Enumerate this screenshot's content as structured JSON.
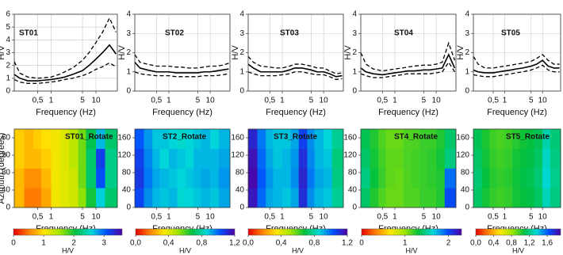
{
  "chart_data": [
    {
      "type": "line",
      "title": "ST01",
      "xlabel": "Frequency (Hz)",
      "ylabel": "H/V",
      "x": [
        0.15,
        0.2,
        0.3,
        0.5,
        0.7,
        1,
        1.5,
        2,
        3,
        5,
        7,
        10,
        14,
        20,
        28
      ],
      "xlim": [
        0.15,
        30
      ],
      "xscale": "log",
      "xticks": [
        {
          "value": 0.5,
          "label": "0,5"
        },
        1,
        5,
        10
      ],
      "ylim": [
        0,
        6
      ],
      "yticks": [
        0,
        1,
        2,
        3,
        4,
        5,
        6
      ],
      "grid": true,
      "series": [
        {
          "color": "#000000",
          "dash": false,
          "values": [
            1.3,
            1.0,
            0.8,
            0.8,
            0.85,
            0.9,
            1.0,
            1.1,
            1.3,
            1.6,
            2.0,
            2.5,
            3.0,
            3.6,
            2.9
          ]
        },
        {
          "color": "#000000",
          "dash": true,
          "values": [
            2.3,
            1.4,
            1.1,
            1.0,
            1.05,
            1.1,
            1.3,
            1.5,
            1.8,
            2.4,
            3.0,
            3.8,
            4.6,
            5.7,
            4.6
          ]
        },
        {
          "color": "#000000",
          "dash": true,
          "values": [
            0.9,
            0.7,
            0.6,
            0.6,
            0.65,
            0.7,
            0.8,
            0.9,
            1.0,
            1.2,
            1.4,
            1.7,
            1.9,
            2.2,
            1.9
          ]
        }
      ]
    },
    {
      "type": "line",
      "title": "ST02",
      "xlabel": "Frequency (Hz)",
      "ylabel": "H/V",
      "x": [
        0.15,
        0.2,
        0.3,
        0.5,
        0.7,
        1,
        1.5,
        2,
        3,
        5,
        7,
        10,
        14,
        20,
        28
      ],
      "xlim": [
        0.15,
        30
      ],
      "xscale": "log",
      "xticks": [
        {
          "value": 0.5,
          "label": "0,5"
        },
        1,
        5,
        10
      ],
      "ylim": [
        0,
        4
      ],
      "yticks": [
        0,
        1,
        2,
        3,
        4
      ],
      "grid": true,
      "series": [
        {
          "color": "#000000",
          "dash": false,
          "values": [
            1.5,
            1.2,
            1.1,
            1.0,
            1.0,
            1.0,
            0.95,
            0.95,
            0.95,
            0.95,
            1.0,
            1.0,
            1.05,
            1.1,
            1.15
          ]
        },
        {
          "color": "#000000",
          "dash": true,
          "values": [
            1.9,
            1.5,
            1.4,
            1.3,
            1.3,
            1.3,
            1.25,
            1.25,
            1.2,
            1.2,
            1.25,
            1.3,
            1.3,
            1.35,
            1.45
          ]
        },
        {
          "color": "#000000",
          "dash": true,
          "values": [
            1.0,
            0.9,
            0.85,
            0.8,
            0.8,
            0.8,
            0.75,
            0.75,
            0.75,
            0.75,
            0.8,
            0.8,
            0.8,
            0.85,
            0.9
          ]
        }
      ]
    },
    {
      "type": "line",
      "title": "ST03",
      "xlabel": "Frequency (Hz)",
      "ylabel": "H/V",
      "x": [
        0.15,
        0.2,
        0.3,
        0.5,
        0.7,
        1,
        1.5,
        2,
        3,
        5,
        7,
        10,
        14,
        20,
        28
      ],
      "xlim": [
        0.15,
        30
      ],
      "xscale": "log",
      "xticks": [
        {
          "value": 0.5,
          "label": "0,5"
        },
        1,
        5,
        10
      ],
      "ylim": [
        0,
        4
      ],
      "yticks": [
        0,
        1,
        2,
        3,
        4
      ],
      "grid": true,
      "series": [
        {
          "color": "#000000",
          "dash": false,
          "values": [
            1.4,
            1.2,
            1.0,
            1.0,
            1.0,
            1.0,
            1.1,
            1.2,
            1.2,
            1.1,
            1.0,
            1.0,
            0.9,
            0.75,
            0.8
          ]
        },
        {
          "color": "#000000",
          "dash": true,
          "values": [
            1.8,
            1.5,
            1.3,
            1.25,
            1.2,
            1.2,
            1.3,
            1.4,
            1.4,
            1.3,
            1.2,
            1.2,
            1.05,
            0.9,
            0.95
          ]
        },
        {
          "color": "#000000",
          "dash": true,
          "values": [
            1.0,
            0.9,
            0.8,
            0.8,
            0.8,
            0.85,
            0.9,
            1.0,
            1.0,
            0.9,
            0.85,
            0.85,
            0.75,
            0.6,
            0.65
          ]
        }
      ]
    },
    {
      "type": "line",
      "title": "ST04",
      "xlabel": "Frequency (Hz)",
      "ylabel": "H/V",
      "x": [
        0.15,
        0.2,
        0.3,
        0.5,
        0.7,
        1,
        1.5,
        2,
        3,
        5,
        7,
        10,
        14,
        20,
        28
      ],
      "xlim": [
        0.15,
        30
      ],
      "xscale": "log",
      "xticks": [
        {
          "value": 0.5,
          "label": "0,5"
        },
        1,
        5,
        10
      ],
      "ylim": [
        0,
        4
      ],
      "yticks": [
        0,
        1,
        2,
        3,
        4
      ],
      "grid": true,
      "series": [
        {
          "color": "#000000",
          "dash": false,
          "values": [
            1.2,
            1.0,
            0.9,
            0.85,
            0.9,
            0.95,
            1.0,
            1.05,
            1.05,
            1.1,
            1.1,
            1.15,
            1.2,
            1.9,
            1.2
          ]
        },
        {
          "color": "#000000",
          "dash": true,
          "values": [
            2.0,
            1.4,
            1.15,
            1.05,
            1.1,
            1.15,
            1.2,
            1.25,
            1.3,
            1.35,
            1.35,
            1.4,
            1.5,
            2.5,
            1.6
          ]
        },
        {
          "color": "#000000",
          "dash": true,
          "values": [
            0.9,
            0.8,
            0.7,
            0.7,
            0.75,
            0.8,
            0.85,
            0.9,
            0.9,
            0.9,
            0.9,
            0.95,
            1.0,
            1.5,
            1.0
          ]
        }
      ]
    },
    {
      "type": "line",
      "title": "ST05",
      "xlabel": "Frequency (Hz)",
      "ylabel": "H/V",
      "x": [
        0.15,
        0.2,
        0.3,
        0.5,
        0.7,
        1,
        1.5,
        2,
        3,
        5,
        7,
        10,
        14,
        20,
        28
      ],
      "xlim": [
        0.15,
        30
      ],
      "xscale": "log",
      "xticks": [
        {
          "value": 0.5,
          "label": "0,5"
        },
        1,
        5,
        10
      ],
      "ylim": [
        0,
        4
      ],
      "yticks": [
        0,
        1,
        2,
        3,
        4
      ],
      "grid": true,
      "series": [
        {
          "color": "#000000",
          "dash": false,
          "values": [
            1.1,
            1.0,
            0.95,
            0.95,
            1.0,
            1.05,
            1.1,
            1.15,
            1.2,
            1.3,
            1.4,
            1.6,
            1.3,
            1.2,
            1.2
          ]
        },
        {
          "color": "#000000",
          "dash": true,
          "values": [
            1.8,
            1.4,
            1.2,
            1.2,
            1.25,
            1.3,
            1.35,
            1.4,
            1.45,
            1.55,
            1.7,
            1.9,
            1.6,
            1.4,
            1.4
          ]
        },
        {
          "color": "#000000",
          "dash": true,
          "values": [
            0.85,
            0.8,
            0.75,
            0.75,
            0.8,
            0.85,
            0.9,
            0.95,
            1.0,
            1.1,
            1.2,
            1.35,
            1.1,
            1.0,
            1.0
          ]
        }
      ]
    },
    {
      "type": "heatmap",
      "title": "ST01_Rotate",
      "xlabel": "Frequency (Hz)",
      "ylabel": "Azimuth (degrees)",
      "xbins": [
        0.15,
        0.25,
        0.4,
        0.6,
        1,
        1.6,
        2.5,
        4,
        6,
        10,
        16,
        30
      ],
      "ybins": [
        0,
        45,
        90,
        135,
        180
      ],
      "z": [
        [
          0.8,
          0.5,
          0.5,
          0.7,
          1.1,
          1.2,
          1.3,
          1.6,
          2.0,
          2.6,
          2.2
        ],
        [
          0.8,
          0.6,
          0.6,
          0.8,
          1.1,
          1.2,
          1.3,
          1.7,
          2.2,
          3.1,
          2.3
        ],
        [
          0.9,
          0.8,
          0.8,
          0.9,
          1.1,
          1.2,
          1.4,
          1.7,
          2.2,
          3.2,
          2.3
        ],
        [
          0.9,
          0.8,
          0.9,
          1.0,
          1.1,
          1.2,
          1.4,
          1.7,
          2.1,
          2.7,
          2.2
        ]
      ],
      "xlim": [
        0.15,
        30
      ],
      "xscale": "log",
      "xticks": [
        {
          "value": 0.5,
          "label": "0,5"
        },
        1,
        5,
        10
      ],
      "ylim": [
        0,
        180
      ],
      "yticks": [
        0,
        40,
        80,
        120,
        160
      ],
      "colorscale": [
        "#e60000",
        "#ff8000",
        "#ffe600",
        "#a0e600",
        "#00c040",
        "#00d8d8",
        "#0050ff",
        "#5000a0"
      ],
      "colorbar": {
        "range": [
          0,
          3.6
        ],
        "ticks": [
          0,
          1,
          2,
          3
        ],
        "label": "H/V"
      }
    },
    {
      "type": "heatmap",
      "title": "ST2_Rotate",
      "xlabel": "Frequency (Hz)",
      "xbins": [
        0.15,
        0.25,
        0.4,
        0.6,
        1,
        1.6,
        2.5,
        4,
        6,
        10,
        16,
        30
      ],
      "ybins": [
        0,
        45,
        90,
        135,
        180
      ],
      "z": [
        [
          1.05,
          0.95,
          0.9,
          0.88,
          0.9,
          0.85,
          0.86,
          0.88,
          0.9,
          0.88,
          0.92
        ],
        [
          1.08,
          0.98,
          0.92,
          0.9,
          0.88,
          0.86,
          0.88,
          0.9,
          0.92,
          0.9,
          0.94
        ],
        [
          1.06,
          0.96,
          0.9,
          0.86,
          0.9,
          0.88,
          0.86,
          0.9,
          0.9,
          0.9,
          0.92
        ],
        [
          1.02,
          0.94,
          0.88,
          0.88,
          0.86,
          0.84,
          0.86,
          0.88,
          0.9,
          0.86,
          0.9
        ]
      ],
      "xlim": [
        0.15,
        30
      ],
      "xscale": "log",
      "xticks": [
        {
          "value": 0.5,
          "label": "0,5"
        },
        1,
        5,
        10
      ],
      "ylim": [
        0,
        180
      ],
      "yticks": [
        0,
        40,
        80,
        120,
        160
      ],
      "colorscale": [
        "#e60000",
        "#ff8000",
        "#ffe600",
        "#a0e600",
        "#00c040",
        "#00d8d8",
        "#0050ff",
        "#5000a0"
      ],
      "colorbar": {
        "range": [
          0,
          1.2
        ],
        "ticks": [
          {
            "value": 0,
            "label": "0,0"
          },
          {
            "value": 0.4,
            "label": "0,4"
          },
          {
            "value": 0.8,
            "label": "0,8"
          },
          {
            "value": 1.2,
            "label": "1,2"
          }
        ],
        "label": "H/V"
      }
    },
    {
      "type": "heatmap",
      "title": "ST3_Rotate",
      "xlabel": "Frequency (Hz)",
      "xbins": [
        0.15,
        0.25,
        0.4,
        0.6,
        1,
        1.6,
        2.5,
        4,
        6,
        10,
        16,
        30
      ],
      "ybins": [
        0,
        45,
        90,
        135,
        180
      ],
      "z": [
        [
          1.15,
          1.0,
          0.92,
          0.9,
          0.88,
          0.92,
          1.1,
          0.95,
          0.9,
          0.88,
          0.78
        ],
        [
          1.18,
          1.02,
          0.94,
          0.9,
          0.9,
          0.95,
          1.12,
          0.98,
          0.92,
          0.9,
          0.76
        ],
        [
          1.16,
          1.0,
          0.92,
          0.88,
          0.9,
          0.94,
          1.1,
          0.96,
          0.9,
          0.88,
          0.75
        ],
        [
          1.12,
          0.98,
          0.9,
          0.88,
          0.88,
          0.92,
          1.06,
          0.95,
          0.9,
          0.86,
          0.78
        ]
      ],
      "xlim": [
        0.15,
        30
      ],
      "xscale": "log",
      "xticks": [
        {
          "value": 0.5,
          "label": "0,5"
        },
        1,
        5,
        10
      ],
      "ylim": [
        0,
        180
      ],
      "yticks": [
        0,
        40,
        80,
        120,
        160
      ],
      "colorscale": [
        "#e60000",
        "#ff8000",
        "#ffe600",
        "#a0e600",
        "#00c040",
        "#00d8d8",
        "#0050ff",
        "#5000a0"
      ],
      "colorbar": {
        "range": [
          0,
          1.2
        ],
        "ticks": [
          {
            "value": 0,
            "label": "0,0"
          },
          {
            "value": 0.4,
            "label": "0,4"
          },
          {
            "value": 0.8,
            "label": "0,8"
          },
          {
            "value": 1.2,
            "label": "1,2"
          }
        ],
        "label": "H/V"
      }
    },
    {
      "type": "heatmap",
      "title": "ST4_Rotate",
      "xlabel": "Frequency (Hz)",
      "xbins": [
        0.15,
        0.25,
        0.4,
        0.6,
        1,
        1.6,
        2.5,
        4,
        6,
        10,
        16,
        30
      ],
      "ybins": [
        0,
        45,
        90,
        135,
        180
      ],
      "z": [
        [
          1.4,
          1.25,
          1.15,
          1.1,
          1.1,
          1.15,
          1.15,
          1.2,
          1.2,
          1.25,
          2.0
        ],
        [
          1.45,
          1.3,
          1.2,
          1.12,
          1.1,
          1.15,
          1.18,
          1.2,
          1.22,
          1.25,
          1.9
        ],
        [
          1.4,
          1.28,
          1.18,
          1.12,
          1.12,
          1.16,
          1.18,
          1.2,
          1.22,
          1.28,
          1.45
        ],
        [
          1.35,
          1.25,
          1.15,
          1.1,
          1.1,
          1.15,
          1.16,
          1.2,
          1.2,
          1.25,
          1.4
        ]
      ],
      "xlim": [
        0.15,
        30
      ],
      "xscale": "log",
      "xticks": [
        {
          "value": 0.5,
          "label": "0,5"
        },
        1,
        5,
        10
      ],
      "ylim": [
        0,
        180
      ],
      "yticks": [
        0,
        40,
        80,
        120,
        160
      ],
      "colorscale": [
        "#e60000",
        "#ff8000",
        "#ffe600",
        "#a0e600",
        "#00c040",
        "#00d8d8",
        "#0050ff",
        "#5000a0"
      ],
      "colorbar": {
        "range": [
          0,
          2.3
        ],
        "ticks": [
          0,
          1,
          2
        ],
        "label": "H/V"
      }
    },
    {
      "type": "heatmap",
      "title": "ST5_Rotate",
      "xlabel": "Frequency (Hz)",
      "xbins": [
        0.15,
        0.25,
        0.4,
        0.6,
        1,
        1.6,
        2.5,
        4,
        6,
        10,
        16,
        30
      ],
      "ybins": [
        0,
        45,
        90,
        135,
        180
      ],
      "z": [
        [
          1.15,
          1.05,
          1.0,
          0.98,
          1.0,
          1.05,
          1.08,
          1.1,
          1.15,
          1.3,
          1.2
        ],
        [
          1.18,
          1.08,
          1.02,
          1.0,
          1.02,
          1.06,
          1.1,
          1.12,
          1.18,
          1.35,
          1.22
        ],
        [
          1.15,
          1.06,
          1.0,
          0.98,
          1.0,
          1.05,
          1.08,
          1.1,
          1.15,
          1.32,
          1.2
        ],
        [
          1.12,
          1.04,
          0.98,
          0.96,
          0.98,
          1.02,
          1.06,
          1.08,
          1.12,
          1.28,
          1.18
        ]
      ],
      "xlim": [
        0.15,
        30
      ],
      "xscale": "log",
      "xticks": [
        {
          "value": 0.5,
          "label": "0,5"
        },
        1,
        5,
        10
      ],
      "ylim": [
        0,
        180
      ],
      "yticks": [
        0,
        40,
        80,
        120,
        160
      ],
      "colorscale": [
        "#e60000",
        "#ff8000",
        "#ffe600",
        "#a0e600",
        "#00c040",
        "#00d8d8",
        "#0050ff",
        "#5000a0"
      ],
      "colorbar": {
        "range": [
          0,
          1.9
        ],
        "ticks": [
          {
            "value": 0,
            "label": "0,0"
          },
          {
            "value": 0.4,
            "label": "0,4"
          },
          {
            "value": 0.8,
            "label": "0,8"
          },
          {
            "value": 1.2,
            "label": "1,2"
          },
          {
            "value": 1.6,
            "label": "1,6"
          }
        ],
        "label": "H/V"
      }
    }
  ]
}
